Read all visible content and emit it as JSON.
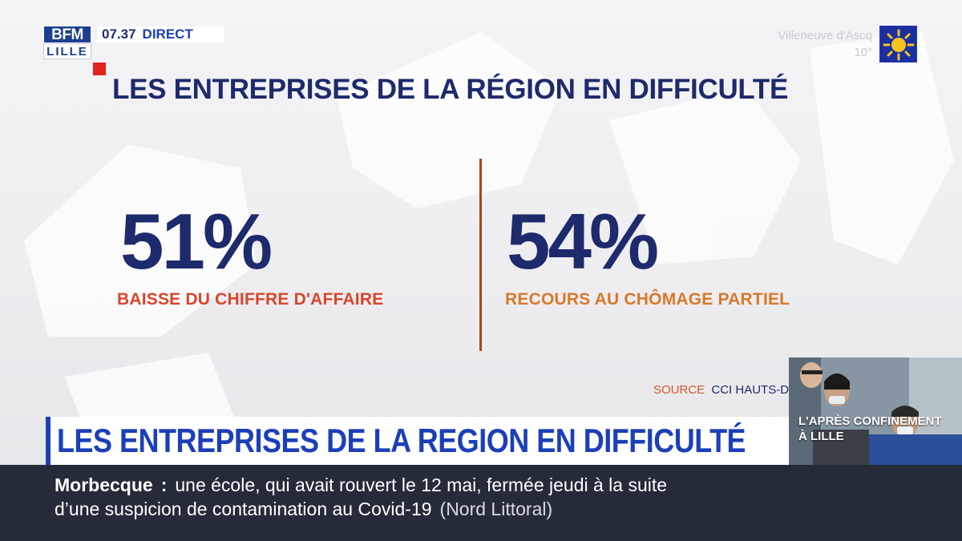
{
  "channel": {
    "logo_top": "BFM",
    "logo_bottom": "LILLE",
    "time": "07.37",
    "live_label": "DIRECT"
  },
  "weather": {
    "city": "Villeneuve d'Ascq",
    "temperature": "10°",
    "icon": "sun-icon"
  },
  "graphic": {
    "headline": "LES ENTREPRISES DE LA RÉGION EN DIFFICULTÉ",
    "stats": [
      {
        "value": "51%",
        "label": "BAISSE DU CHIFFRE D'AFFAIRE",
        "label_color": "#d8452a"
      },
      {
        "value": "54%",
        "label": "RECOURS AU CHÔMAGE PARTIEL",
        "label_color": "#d9782a"
      }
    ],
    "source_label": "SOURCE",
    "source_value": "CCI HAUTS-D"
  },
  "lower_third": {
    "title": "LES ENTREPRISES DE LA REGION EN DIFFICULTÉ"
  },
  "thumbnail": {
    "caption": "L'APRÈS CONFINEMENT À LILLE"
  },
  "ticker": {
    "place": "Morbecque",
    "separator": ":",
    "line1": "une école, qui avait rouvert le 12 mai, fermée jeudi à la suite",
    "line2": "d’une suspicion de contamination au Covid-19",
    "region": "(Nord Littoral)"
  },
  "colors": {
    "navy": "#1d2a6c",
    "bfm_blue": "#1c3fb8",
    "red": "#e12319",
    "divider": "#a64718",
    "ticker_bg": "#262b3a"
  }
}
